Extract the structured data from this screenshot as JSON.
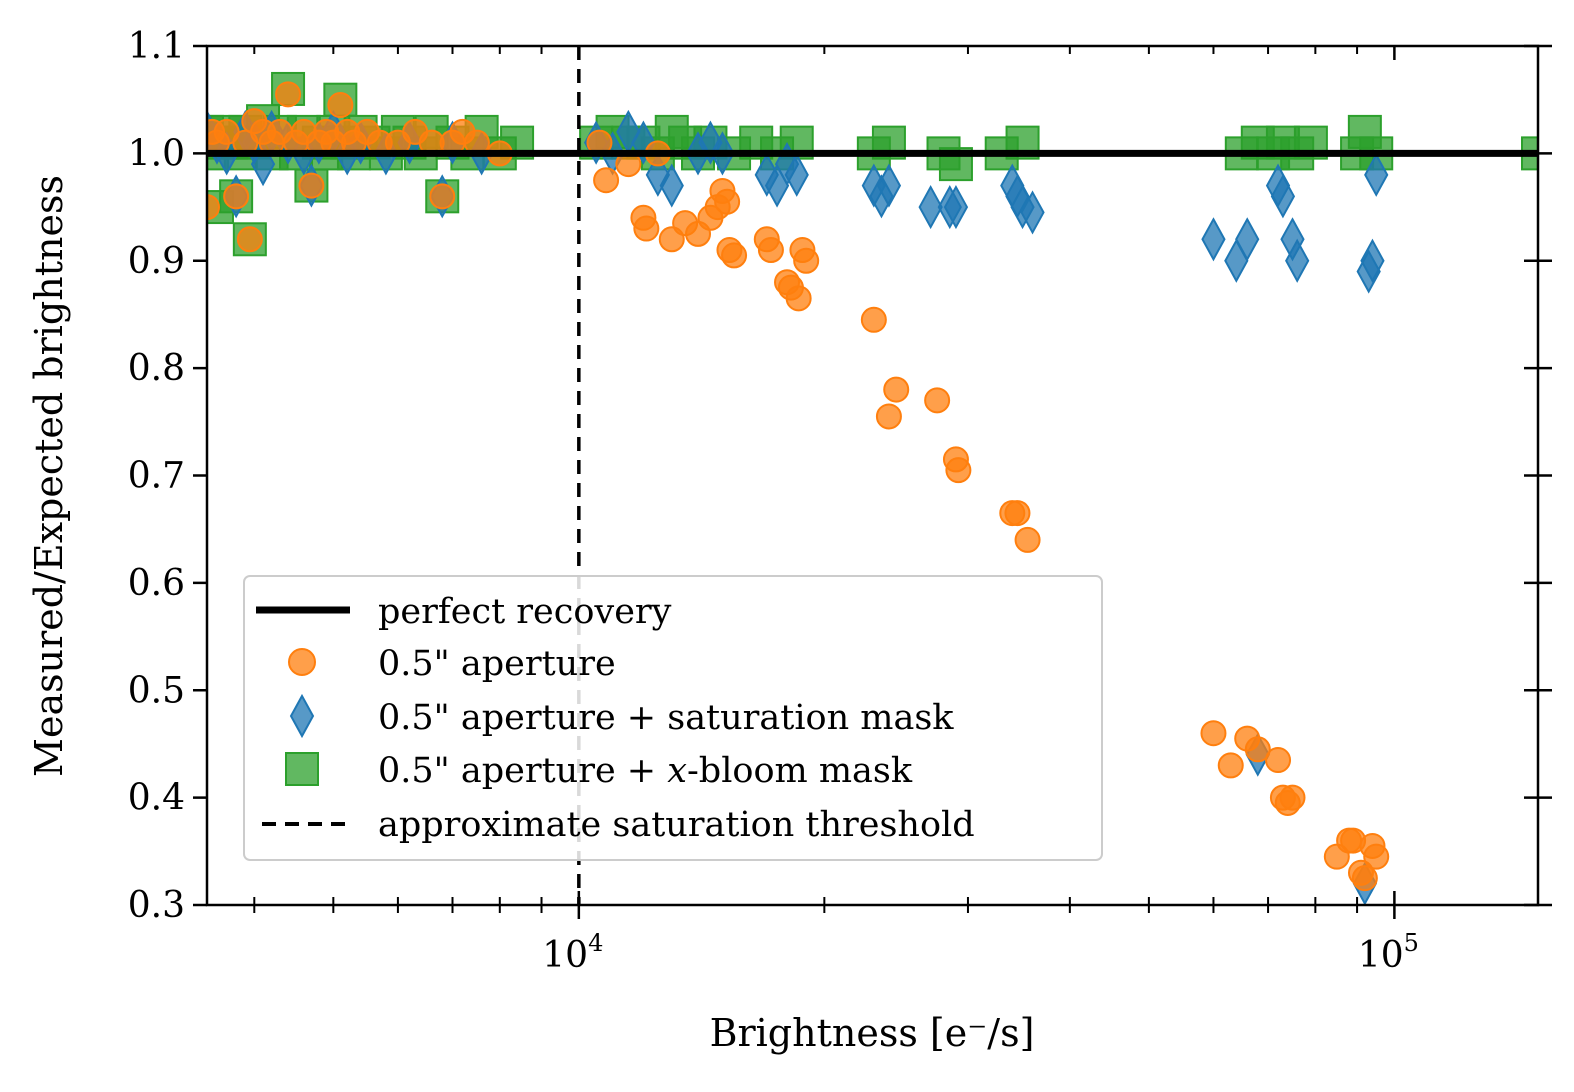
{
  "chart_data": {
    "type": "scatter",
    "title": "",
    "xlabel": "Brightness [e⁻/s]",
    "ylabel": "Measured/Expected brightness",
    "xscale": "log",
    "xlim": [
      3500,
      150000
    ],
    "ylim": [
      0.3,
      1.1
    ],
    "yticks": [
      "0.3",
      "0.4",
      "0.5",
      "0.6",
      "0.7",
      "0.8",
      "0.9",
      "1.0",
      "1.1"
    ],
    "xticks": [
      {
        "value": 10000,
        "base": "10",
        "exp": "4"
      },
      {
        "value": 100000,
        "base": "10",
        "exp": "5"
      }
    ],
    "grid": false,
    "legend_position": "lower-left",
    "reference_lines": [
      {
        "name": "perfect recovery",
        "orientation": "horizontal",
        "value": 1.0,
        "style": "solid",
        "color": "#000000"
      },
      {
        "name": "approximate saturation threshold",
        "orientation": "vertical",
        "value": 10000,
        "style": "dashed",
        "color": "#000000"
      }
    ],
    "legend": [
      {
        "label": "perfect recovery",
        "kind": "line"
      },
      {
        "label": "0.5\" aperture",
        "kind": "circle"
      },
      {
        "label": "0.5\" aperture + saturation mask",
        "kind": "diamond"
      },
      {
        "label_prefix": "0.5\" aperture + ",
        "label_italic": "x",
        "label_suffix": "-bloom mask",
        "kind": "square"
      },
      {
        "label": "approximate saturation threshold",
        "kind": "dashed"
      }
    ],
    "series": [
      {
        "name": "0.5\" aperture + x-bloom mask",
        "marker": "square",
        "color": "#2ca02c",
        "points": [
          [
            3500,
            1.02
          ],
          [
            3550,
            1.0
          ],
          [
            3600,
            0.95
          ],
          [
            3650,
            1.01
          ],
          [
            3700,
            1.02
          ],
          [
            3750,
            1.01
          ],
          [
            3800,
            0.96
          ],
          [
            3850,
            1.0
          ],
          [
            3900,
            1.02
          ],
          [
            3950,
            0.92
          ],
          [
            4000,
            1.01
          ],
          [
            4100,
            1.03
          ],
          [
            4200,
            1.0
          ],
          [
            4300,
            1.02
          ],
          [
            4400,
            1.06
          ],
          [
            4500,
            1.0
          ],
          [
            4600,
            1.02
          ],
          [
            4700,
            0.97
          ],
          [
            4800,
            1.01
          ],
          [
            4900,
            1.0
          ],
          [
            5000,
            1.02
          ],
          [
            5100,
            1.05
          ],
          [
            5200,
            1.01
          ],
          [
            5300,
            1.0
          ],
          [
            5400,
            1.02
          ],
          [
            5600,
            1.01
          ],
          [
            5800,
            1.0
          ],
          [
            6000,
            1.02
          ],
          [
            6200,
            1.01
          ],
          [
            6400,
            1.0
          ],
          [
            6600,
            1.02
          ],
          [
            6800,
            0.96
          ],
          [
            7000,
            1.01
          ],
          [
            7300,
            1.0
          ],
          [
            7600,
            1.02
          ],
          [
            8000,
            1.0
          ],
          [
            8400,
            1.01
          ],
          [
            10500,
            1.01
          ],
          [
            11000,
            1.02
          ],
          [
            11500,
            1.01
          ],
          [
            12000,
            1.01
          ],
          [
            12500,
            1.0
          ],
          [
            13000,
            1.02
          ],
          [
            13500,
            1.01
          ],
          [
            14000,
            1.0
          ],
          [
            14500,
            1.01
          ],
          [
            15500,
            1.0
          ],
          [
            16500,
            1.01
          ],
          [
            17500,
            1.0
          ],
          [
            18500,
            1.01
          ],
          [
            23000,
            1.0
          ],
          [
            24000,
            1.01
          ],
          [
            28000,
            1.0
          ],
          [
            29000,
            0.99
          ],
          [
            33000,
            1.0
          ],
          [
            35000,
            1.01
          ],
          [
            65000,
            1.0
          ],
          [
            68000,
            1.01
          ],
          [
            71000,
            1.0
          ],
          [
            73000,
            1.01
          ],
          [
            76000,
            1.0
          ],
          [
            79000,
            1.01
          ],
          [
            90000,
            1.0
          ],
          [
            92000,
            1.02
          ],
          [
            95000,
            1.0
          ],
          [
            150000,
            1.0
          ]
        ]
      },
      {
        "name": "0.5\" aperture + saturation mask",
        "marker": "diamond",
        "color": "#1f77b4",
        "points": [
          [
            3500,
            1.02
          ],
          [
            3600,
            1.01
          ],
          [
            3700,
            1.0
          ],
          [
            3800,
            0.96
          ],
          [
            3900,
            1.02
          ],
          [
            4000,
            1.01
          ],
          [
            4100,
            0.99
          ],
          [
            4200,
            1.02
          ],
          [
            4400,
            1.01
          ],
          [
            4600,
            1.0
          ],
          [
            4700,
            0.97
          ],
          [
            4800,
            1.01
          ],
          [
            5000,
            1.02
          ],
          [
            5200,
            1.0
          ],
          [
            5400,
            1.01
          ],
          [
            5800,
            1.0
          ],
          [
            6200,
            1.01
          ],
          [
            6800,
            0.96
          ],
          [
            7000,
            1.01
          ],
          [
            7600,
            1.0
          ],
          [
            10500,
            1.01
          ],
          [
            11000,
            1.0
          ],
          [
            11500,
            1.02
          ],
          [
            12000,
            1.01
          ],
          [
            12500,
            0.98
          ],
          [
            13000,
            0.97
          ],
          [
            14000,
            1.0
          ],
          [
            14500,
            1.01
          ],
          [
            15000,
            1.0
          ],
          [
            17000,
            0.98
          ],
          [
            17500,
            0.97
          ],
          [
            18000,
            0.99
          ],
          [
            18500,
            0.98
          ],
          [
            23000,
            0.97
          ],
          [
            23500,
            0.96
          ],
          [
            24000,
            0.97
          ],
          [
            27000,
            0.95
          ],
          [
            28500,
            0.95
          ],
          [
            29000,
            0.95
          ],
          [
            34000,
            0.97
          ],
          [
            34500,
            0.96
          ],
          [
            35000,
            0.95
          ],
          [
            36000,
            0.945
          ],
          [
            60000,
            0.92
          ],
          [
            64000,
            0.9
          ],
          [
            66000,
            0.92
          ],
          [
            68000,
            0.44
          ],
          [
            72000,
            0.97
          ],
          [
            73000,
            0.96
          ],
          [
            75000,
            0.92
          ],
          [
            76000,
            0.9
          ],
          [
            92000,
            0.32
          ],
          [
            93000,
            0.89
          ],
          [
            94000,
            0.9
          ],
          [
            95000,
            0.98
          ]
        ]
      },
      {
        "name": "0.5\" aperture",
        "marker": "circle",
        "color": "#ff7f0e",
        "points": [
          [
            3500,
            0.95
          ],
          [
            3550,
            1.02
          ],
          [
            3600,
            1.01
          ],
          [
            3700,
            1.02
          ],
          [
            3800,
            0.96
          ],
          [
            3900,
            1.01
          ],
          [
            3950,
            0.92
          ],
          [
            4000,
            1.03
          ],
          [
            4100,
            1.02
          ],
          [
            4200,
            1.01
          ],
          [
            4300,
            1.02
          ],
          [
            4400,
            1.055
          ],
          [
            4500,
            1.01
          ],
          [
            4600,
            1.02
          ],
          [
            4700,
            0.97
          ],
          [
            4800,
            1.01
          ],
          [
            4900,
            1.02
          ],
          [
            5000,
            1.01
          ],
          [
            5100,
            1.045
          ],
          [
            5200,
            1.02
          ],
          [
            5300,
            1.01
          ],
          [
            5500,
            1.02
          ],
          [
            5700,
            1.01
          ],
          [
            6000,
            1.01
          ],
          [
            6300,
            1.02
          ],
          [
            6600,
            1.01
          ],
          [
            6800,
            0.96
          ],
          [
            7000,
            1.01
          ],
          [
            7200,
            1.02
          ],
          [
            7500,
            1.01
          ],
          [
            8000,
            1.0
          ],
          [
            10600,
            1.01
          ],
          [
            10800,
            0.975
          ],
          [
            11500,
            0.99
          ],
          [
            12000,
            0.94
          ],
          [
            12100,
            0.93
          ],
          [
            12500,
            1.0
          ],
          [
            13000,
            0.92
          ],
          [
            13500,
            0.935
          ],
          [
            14000,
            0.925
          ],
          [
            14500,
            0.94
          ],
          [
            14800,
            0.95
          ],
          [
            15000,
            0.965
          ],
          [
            15200,
            0.955
          ],
          [
            15300,
            0.91
          ],
          [
            15500,
            0.905
          ],
          [
            17000,
            0.92
          ],
          [
            17200,
            0.91
          ],
          [
            18000,
            0.88
          ],
          [
            18200,
            0.875
          ],
          [
            18600,
            0.865
          ],
          [
            18800,
            0.91
          ],
          [
            19000,
            0.9
          ],
          [
            23000,
            0.845
          ],
          [
            24000,
            0.755
          ],
          [
            24500,
            0.78
          ],
          [
            27500,
            0.77
          ],
          [
            29000,
            0.715
          ],
          [
            29200,
            0.705
          ],
          [
            34000,
            0.665
          ],
          [
            34500,
            0.665
          ],
          [
            35500,
            0.64
          ],
          [
            60000,
            0.46
          ],
          [
            63000,
            0.43
          ],
          [
            66000,
            0.455
          ],
          [
            68000,
            0.445
          ],
          [
            72000,
            0.435
          ],
          [
            73000,
            0.4
          ],
          [
            74000,
            0.395
          ],
          [
            75000,
            0.4
          ],
          [
            85000,
            0.345
          ],
          [
            88000,
            0.36
          ],
          [
            89000,
            0.36
          ],
          [
            91000,
            0.33
          ],
          [
            92000,
            0.325
          ],
          [
            94000,
            0.355
          ],
          [
            95000,
            0.345
          ]
        ]
      }
    ]
  }
}
